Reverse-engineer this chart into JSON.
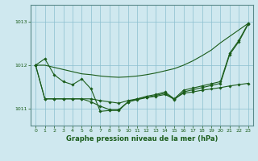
{
  "title": "Graphe pression niveau de la mer (hPa)",
  "background_color": "#cfe8ef",
  "grid_color": "#8bbfcf",
  "line_color": "#1a5c1a",
  "ylim": [
    1010.6,
    1013.4
  ],
  "yticks": [
    1011,
    1012,
    1013
  ],
  "hours": [
    0,
    1,
    2,
    3,
    4,
    5,
    6,
    7,
    8,
    9,
    10,
    11,
    12,
    13,
    14,
    15,
    16,
    17,
    18,
    19,
    20,
    21,
    22,
    23
  ],
  "line_smooth": [
    1012.0,
    1012.0,
    1011.95,
    1011.9,
    1011.85,
    1011.8,
    1011.78,
    1011.75,
    1011.73,
    1011.72,
    1011.73,
    1011.75,
    1011.78,
    1011.82,
    1011.87,
    1011.92,
    1012.0,
    1012.1,
    1012.22,
    1012.35,
    1012.52,
    1012.67,
    1012.82,
    1012.97
  ],
  "line_marked1": [
    1012.0,
    1012.15,
    1011.78,
    1011.62,
    1011.55,
    1011.68,
    1011.45,
    1010.93,
    1010.95,
    1010.95,
    1011.15,
    1011.22,
    1011.28,
    1011.32,
    1011.38,
    1011.22,
    1011.42,
    1011.47,
    1011.52,
    1011.57,
    1011.62,
    1012.28,
    1012.58,
    1012.97
  ],
  "line_marked2": [
    1012.0,
    1011.22,
    1011.22,
    1011.22,
    1011.22,
    1011.22,
    1011.22,
    1011.18,
    1011.15,
    1011.12,
    1011.18,
    1011.22,
    1011.25,
    1011.28,
    1011.32,
    1011.22,
    1011.35,
    1011.38,
    1011.42,
    1011.45,
    1011.48,
    1011.52,
    1011.55,
    1011.58
  ],
  "line_marked3": [
    1012.0,
    1011.22,
    1011.22,
    1011.22,
    1011.22,
    1011.22,
    1011.15,
    1011.05,
    1010.97,
    1010.97,
    1011.15,
    1011.2,
    1011.25,
    1011.3,
    1011.35,
    1011.2,
    1011.38,
    1011.43,
    1011.48,
    1011.53,
    1011.58,
    1012.25,
    1012.55,
    1012.95
  ]
}
